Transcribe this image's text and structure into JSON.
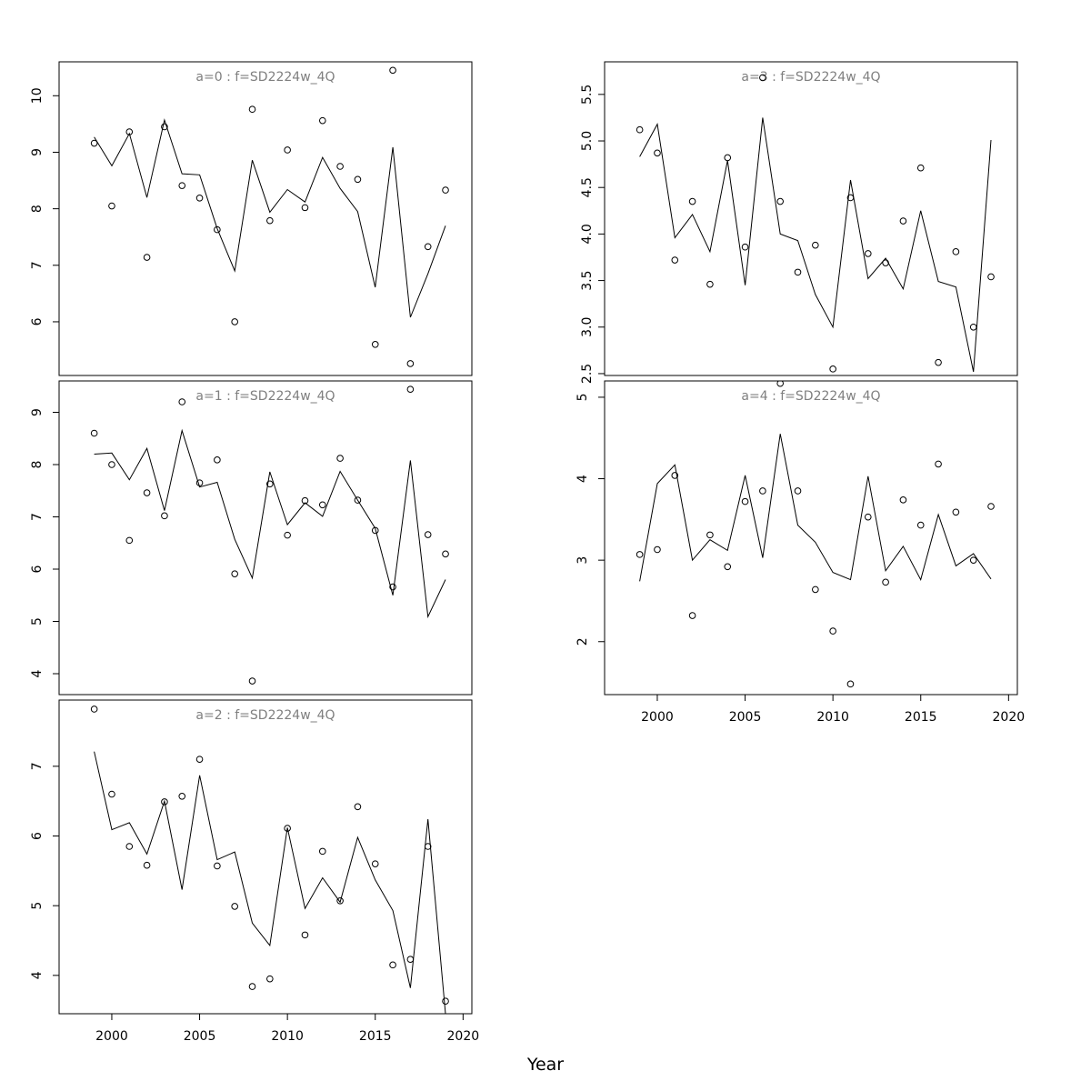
{
  "chart_data": {
    "type": "line",
    "xlabel": "Year",
    "x": [
      1999,
      2000,
      2001,
      2002,
      2003,
      2004,
      2005,
      2006,
      2007,
      2008,
      2009,
      2010,
      2011,
      2012,
      2013,
      2014,
      2015,
      2016,
      2017,
      2018,
      2019
    ],
    "xticks": [
      2000,
      2005,
      2010,
      2015,
      2020
    ],
    "xlim": [
      1997,
      2020.5
    ],
    "line_style": "solid black line (fitted) with open circle markers (observed)",
    "panels": [
      {
        "title": "a=0  :  f=SD2224w_4Q",
        "ylim": [
          5.05,
          10.6
        ],
        "yticks": [
          6,
          7,
          8,
          9,
          10
        ],
        "series": [
          {
            "values": [
              9.27,
              8.76,
              9.33,
              8.2,
              9.57,
              8.62,
              8.6,
              7.65,
              6.9,
              8.86,
              7.94,
              8.34,
              8.12,
              8.91,
              8.36,
              7.95,
              6.61,
              9.09,
              6.08,
              6.85,
              7.7
            ]
          },
          {
            "values": [
              9.16,
              8.05,
              9.36,
              7.14,
              9.45,
              8.41,
              8.19,
              7.63,
              6.0,
              9.76,
              7.79,
              9.04,
              8.02,
              9.56,
              8.75,
              8.52,
              5.6,
              10.45,
              5.26,
              7.33,
              8.33
            ]
          }
        ]
      },
      {
        "title": "a=3  :  f=SD2224w_4Q",
        "ylim": [
          2.48,
          5.85
        ],
        "yticks": [
          2.5,
          3.0,
          3.5,
          4.0,
          4.5,
          5.0,
          5.5
        ],
        "series": [
          {
            "values": [
              4.83,
              5.18,
              3.96,
              4.21,
              3.81,
              4.79,
              3.45,
              5.25,
              4.0,
              3.93,
              3.35,
              3.0,
              4.58,
              3.52,
              3.74,
              3.41,
              4.25,
              3.49,
              3.43,
              2.52,
              5.01
            ]
          },
          {
            "values": [
              5.12,
              4.87,
              3.72,
              4.35,
              3.46,
              4.82,
              3.86,
              5.68,
              4.35,
              3.59,
              3.88,
              2.55,
              4.39,
              3.79,
              3.69,
              4.14,
              4.71,
              2.62,
              3.81,
              3.0,
              3.54
            ]
          }
        ]
      },
      {
        "title": "a=1  :  f=SD2224w_4Q",
        "ylim": [
          3.6,
          9.6
        ],
        "yticks": [
          4,
          5,
          6,
          7,
          8,
          9
        ],
        "series": [
          {
            "values": [
              8.2,
              8.22,
              7.71,
              8.31,
              7.12,
              8.65,
              7.57,
              7.66,
              6.57,
              5.83,
              7.86,
              6.85,
              7.27,
              7.01,
              7.87,
              7.32,
              6.78,
              5.5,
              8.08,
              5.09,
              5.8
            ]
          },
          {
            "values": [
              8.6,
              8.0,
              6.55,
              7.46,
              7.02,
              9.2,
              7.65,
              8.09,
              5.91,
              3.86,
              7.63,
              6.65,
              7.31,
              7.23,
              8.12,
              7.32,
              6.74,
              5.66,
              9.44,
              6.66,
              6.29
            ]
          }
        ]
      },
      {
        "title": "a=4  :  f=SD2224w_4Q",
        "ylim": [
          1.35,
          5.2
        ],
        "yticks": [
          2,
          3,
          4,
          5
        ],
        "series": [
          {
            "values": [
              2.74,
              3.94,
              4.17,
              3.0,
              3.25,
              3.12,
              4.04,
              3.03,
              4.55,
              3.43,
              3.22,
              2.85,
              2.76,
              4.03,
              2.87,
              3.17,
              2.76,
              3.56,
              2.93,
              3.08,
              2.77
            ]
          },
          {
            "values": [
              3.07,
              3.13,
              4.04,
              2.32,
              3.31,
              2.92,
              3.72,
              3.85,
              5.17,
              3.85,
              2.64,
              2.13,
              1.48,
              3.53,
              2.73,
              3.74,
              3.43,
              4.18,
              3.59,
              3.0,
              3.66
            ]
          }
        ]
      },
      {
        "title": "a=2  :  f=SD2224w_4Q",
        "ylim": [
          3.45,
          7.95
        ],
        "yticks": [
          4,
          5,
          6,
          7
        ],
        "series": [
          {
            "values": [
              7.21,
              6.09,
              6.19,
              5.74,
              6.5,
              5.23,
              6.87,
              5.66,
              5.77,
              4.75,
              4.43,
              6.12,
              4.96,
              5.4,
              5.05,
              5.98,
              5.37,
              4.93,
              3.82,
              6.24,
              3.45
            ]
          },
          {
            "values": [
              7.82,
              6.6,
              5.85,
              5.58,
              6.49,
              6.57,
              7.1,
              5.57,
              4.99,
              3.84,
              3.95,
              6.11,
              4.58,
              5.78,
              5.07,
              6.42,
              5.6,
              4.15,
              4.23,
              5.85,
              3.63
            ]
          }
        ]
      }
    ]
  }
}
